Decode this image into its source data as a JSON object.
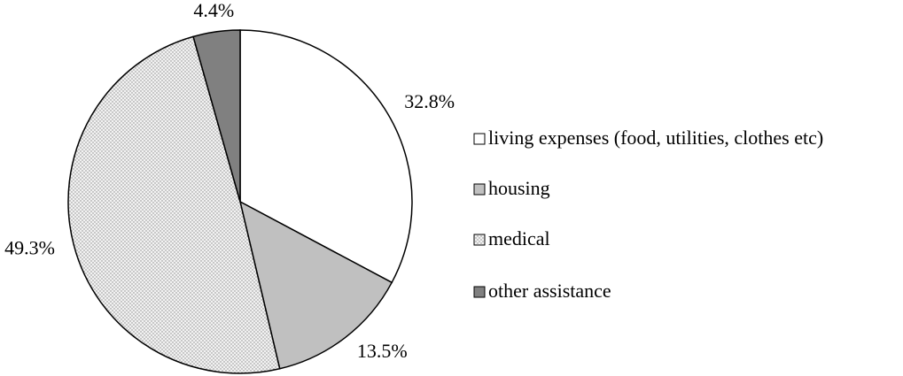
{
  "chart_data": {
    "type": "pie",
    "categories": [
      "living expenses (food, utilities, clothes etc)",
      "housing",
      "medical",
      "other assistance"
    ],
    "values": [
      32.8,
      13.5,
      49.3,
      4.4
    ],
    "value_labels": [
      "32.8%",
      "13.5%",
      "49.3%",
      "4.4%"
    ],
    "colors": [
      "#ffffff",
      "#c0c0c0",
      "#f2f2f2",
      "#808080"
    ],
    "patterns": [
      "none",
      "none",
      "dots",
      "none"
    ],
    "legend": "right"
  }
}
